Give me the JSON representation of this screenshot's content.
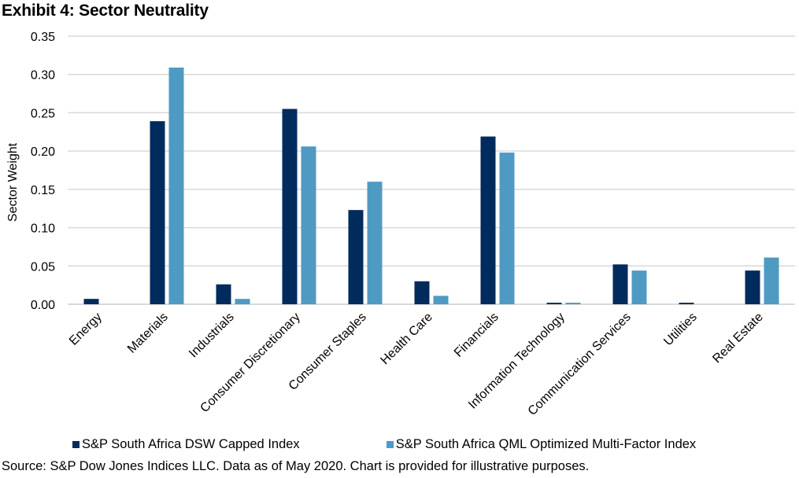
{
  "title": "Exhibit 4: Sector Neutrality",
  "source": "Source: S&P Dow Jones Indices LLC. Data as of May 2020. Chart is provided for illustrative purposes.",
  "chart_data": {
    "type": "bar",
    "title": "Exhibit 4: Sector Neutrality",
    "xlabel": "",
    "ylabel": "Sector Weight",
    "ylim": [
      0,
      0.35
    ],
    "yticks": [
      "0.00",
      "0.05",
      "0.10",
      "0.15",
      "0.20",
      "0.25",
      "0.30",
      "0.35"
    ],
    "grid": true,
    "legend_position": "bottom",
    "categories": [
      "Energy",
      "Materials",
      "Industrials",
      "Consumer Discretionary",
      "Consumer Staples",
      "Health Care",
      "Financials",
      "Information Technology",
      "Communication Services",
      "Utilities",
      "Real Estate"
    ],
    "series": [
      {
        "name": "S&P South Africa DSW Capped Index",
        "color": "#002b5c",
        "values": [
          0.007,
          0.239,
          0.026,
          0.255,
          0.123,
          0.03,
          0.219,
          0.002,
          0.052,
          0.002,
          0.044
        ]
      },
      {
        "name": "S&P South Africa QML Optimized Multi-Factor Index",
        "color": "#4f9ac3",
        "values": [
          0.0,
          0.309,
          0.007,
          0.206,
          0.16,
          0.011,
          0.198,
          0.002,
          0.044,
          0.0,
          0.061
        ]
      }
    ]
  }
}
